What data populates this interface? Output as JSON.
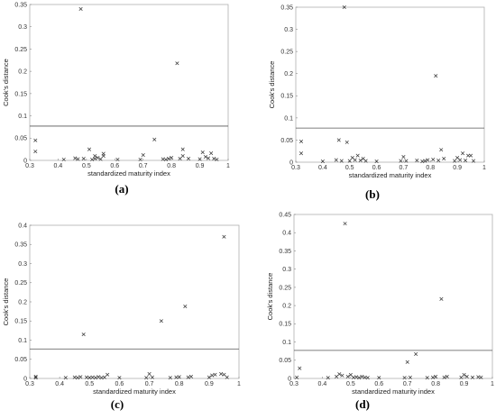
{
  "chart_data": [
    {
      "type": "scatter",
      "panel_label": "(a)",
      "xlabel": "standardized maturity index",
      "ylabel": "Cook's distance",
      "xlim": [
        0.3,
        1
      ],
      "ylim": [
        0,
        0.35
      ],
      "xticks": [
        "0.3",
        "0.4",
        "0.5",
        "0.6",
        "0.7",
        "0.8",
        "0.9",
        "1"
      ],
      "yticks": [
        "0",
        "0.05",
        "0.1",
        "0.15",
        "0.2",
        "0.25",
        "0.3",
        "0.35"
      ],
      "threshold": 0.077,
      "marker": "x",
      "points": [
        [
          0.32,
          0.045
        ],
        [
          0.32,
          0.02
        ],
        [
          0.42,
          0.002
        ],
        [
          0.46,
          0.005
        ],
        [
          0.47,
          0.003
        ],
        [
          0.48,
          0.34
        ],
        [
          0.49,
          0.004
        ],
        [
          0.51,
          0.025
        ],
        [
          0.52,
          0.002
        ],
        [
          0.53,
          0.01
        ],
        [
          0.53,
          0.004
        ],
        [
          0.54,
          0.006
        ],
        [
          0.55,
          0.003
        ],
        [
          0.56,
          0.015
        ],
        [
          0.56,
          0.01
        ],
        [
          0.61,
          0.002
        ],
        [
          0.69,
          0.002
        ],
        [
          0.7,
          0.012
        ],
        [
          0.74,
          0.047
        ],
        [
          0.77,
          0.003
        ],
        [
          0.78,
          0.002
        ],
        [
          0.79,
          0.004
        ],
        [
          0.8,
          0.006
        ],
        [
          0.82,
          0.218
        ],
        [
          0.83,
          0.004
        ],
        [
          0.84,
          0.025
        ],
        [
          0.84,
          0.01
        ],
        [
          0.86,
          0.004
        ],
        [
          0.9,
          0.003
        ],
        [
          0.91,
          0.018
        ],
        [
          0.92,
          0.008
        ],
        [
          0.93,
          0.005
        ],
        [
          0.94,
          0.016
        ],
        [
          0.95,
          0.004
        ],
        [
          0.96,
          0.002
        ]
      ]
    },
    {
      "type": "scatter",
      "panel_label": "(b)",
      "xlabel": "standardized maturity index",
      "ylabel": "Cook's distance",
      "xlim": [
        0.3,
        1
      ],
      "ylim": [
        0,
        0.35
      ],
      "xticks": [
        "0.3",
        "0.4",
        "0.5",
        "0.6",
        "0.7",
        "0.8",
        "0.9",
        "1"
      ],
      "yticks": [
        "0",
        "0.05",
        "0.1",
        "0.15",
        "0.2",
        "0.25",
        "0.3",
        "0.35"
      ],
      "threshold": 0.077,
      "marker": "x",
      "points": [
        [
          0.32,
          0.047
        ],
        [
          0.32,
          0.02
        ],
        [
          0.4,
          0.002
        ],
        [
          0.45,
          0.005
        ],
        [
          0.46,
          0.05
        ],
        [
          0.47,
          0.003
        ],
        [
          0.48,
          0.35
        ],
        [
          0.49,
          0.045
        ],
        [
          0.5,
          0.003
        ],
        [
          0.51,
          0.01
        ],
        [
          0.52,
          0.005
        ],
        [
          0.53,
          0.015
        ],
        [
          0.54,
          0.004
        ],
        [
          0.55,
          0.008
        ],
        [
          0.56,
          0.003
        ],
        [
          0.6,
          0.002
        ],
        [
          0.69,
          0.003
        ],
        [
          0.7,
          0.012
        ],
        [
          0.71,
          0.003
        ],
        [
          0.75,
          0.004
        ],
        [
          0.77,
          0.002
        ],
        [
          0.78,
          0.003
        ],
        [
          0.79,
          0.005
        ],
        [
          0.81,
          0.006
        ],
        [
          0.82,
          0.195
        ],
        [
          0.83,
          0.004
        ],
        [
          0.84,
          0.028
        ],
        [
          0.85,
          0.008
        ],
        [
          0.89,
          0.003
        ],
        [
          0.9,
          0.01
        ],
        [
          0.91,
          0.005
        ],
        [
          0.92,
          0.02
        ],
        [
          0.93,
          0.004
        ],
        [
          0.94,
          0.015
        ],
        [
          0.95,
          0.015
        ],
        [
          0.96,
          0.003
        ]
      ]
    },
    {
      "type": "scatter",
      "panel_label": "(c)",
      "xlabel": "standardized maturity index",
      "ylabel": "Cook's distance",
      "xlim": [
        0.3,
        1
      ],
      "ylim": [
        0,
        0.4
      ],
      "xticks": [
        "0.3",
        "0.4",
        "0.5",
        "0.6",
        "0.7",
        "0.8",
        "0.9",
        "1"
      ],
      "yticks": [
        "0",
        "0.05",
        "0.1",
        "0.15",
        "0.2",
        "0.25",
        "0.3",
        "0.35",
        "0.4"
      ],
      "threshold": 0.077,
      "marker": "x",
      "points": [
        [
          0.32,
          0.005
        ],
        [
          0.32,
          0.002
        ],
        [
          0.42,
          0.002
        ],
        [
          0.45,
          0.003
        ],
        [
          0.46,
          0.002
        ],
        [
          0.47,
          0.004
        ],
        [
          0.48,
          0.115
        ],
        [
          0.49,
          0.003
        ],
        [
          0.5,
          0.002
        ],
        [
          0.51,
          0.003
        ],
        [
          0.52,
          0.002
        ],
        [
          0.53,
          0.004
        ],
        [
          0.54,
          0.002
        ],
        [
          0.55,
          0.003
        ],
        [
          0.56,
          0.01
        ],
        [
          0.6,
          0.002
        ],
        [
          0.69,
          0.002
        ],
        [
          0.7,
          0.012
        ],
        [
          0.71,
          0.003
        ],
        [
          0.74,
          0.15
        ],
        [
          0.77,
          0.002
        ],
        [
          0.79,
          0.003
        ],
        [
          0.8,
          0.004
        ],
        [
          0.82,
          0.188
        ],
        [
          0.83,
          0.003
        ],
        [
          0.84,
          0.005
        ],
        [
          0.9,
          0.003
        ],
        [
          0.91,
          0.008
        ],
        [
          0.92,
          0.01
        ],
        [
          0.94,
          0.012
        ],
        [
          0.95,
          0.37
        ],
        [
          0.95,
          0.01
        ],
        [
          0.96,
          0.003
        ]
      ]
    },
    {
      "type": "scatter",
      "panel_label": "(d)",
      "xlabel": "standardized maturity index",
      "ylabel": "Cook's distance",
      "xlim": [
        0.3,
        1
      ],
      "ylim": [
        0,
        0.45
      ],
      "xticks": [
        "0.3",
        "0.4",
        "0.5",
        "0.6",
        "0.7",
        "0.8",
        "0.9",
        "1"
      ],
      "yticks": [
        "0",
        "0.05",
        "0.1",
        "0.15",
        "0.2",
        "0.25",
        "0.3",
        "0.35",
        "0.4",
        "0.45"
      ],
      "threshold": 0.077,
      "marker": "x",
      "points": [
        [
          0.32,
          0.028
        ],
        [
          0.31,
          0.003
        ],
        [
          0.42,
          0.002
        ],
        [
          0.45,
          0.005
        ],
        [
          0.46,
          0.012
        ],
        [
          0.47,
          0.008
        ],
        [
          0.48,
          0.425
        ],
        [
          0.49,
          0.005
        ],
        [
          0.5,
          0.01
        ],
        [
          0.51,
          0.003
        ],
        [
          0.52,
          0.004
        ],
        [
          0.53,
          0.002
        ],
        [
          0.54,
          0.005
        ],
        [
          0.55,
          0.003
        ],
        [
          0.56,
          0.002
        ],
        [
          0.6,
          0.002
        ],
        [
          0.69,
          0.002
        ],
        [
          0.7,
          0.045
        ],
        [
          0.71,
          0.003
        ],
        [
          0.73,
          0.067
        ],
        [
          0.77,
          0.002
        ],
        [
          0.79,
          0.003
        ],
        [
          0.8,
          0.005
        ],
        [
          0.82,
          0.218
        ],
        [
          0.83,
          0.003
        ],
        [
          0.84,
          0.005
        ],
        [
          0.89,
          0.003
        ],
        [
          0.9,
          0.01
        ],
        [
          0.91,
          0.005
        ],
        [
          0.93,
          0.003
        ],
        [
          0.95,
          0.004
        ],
        [
          0.96,
          0.003
        ]
      ]
    }
  ]
}
